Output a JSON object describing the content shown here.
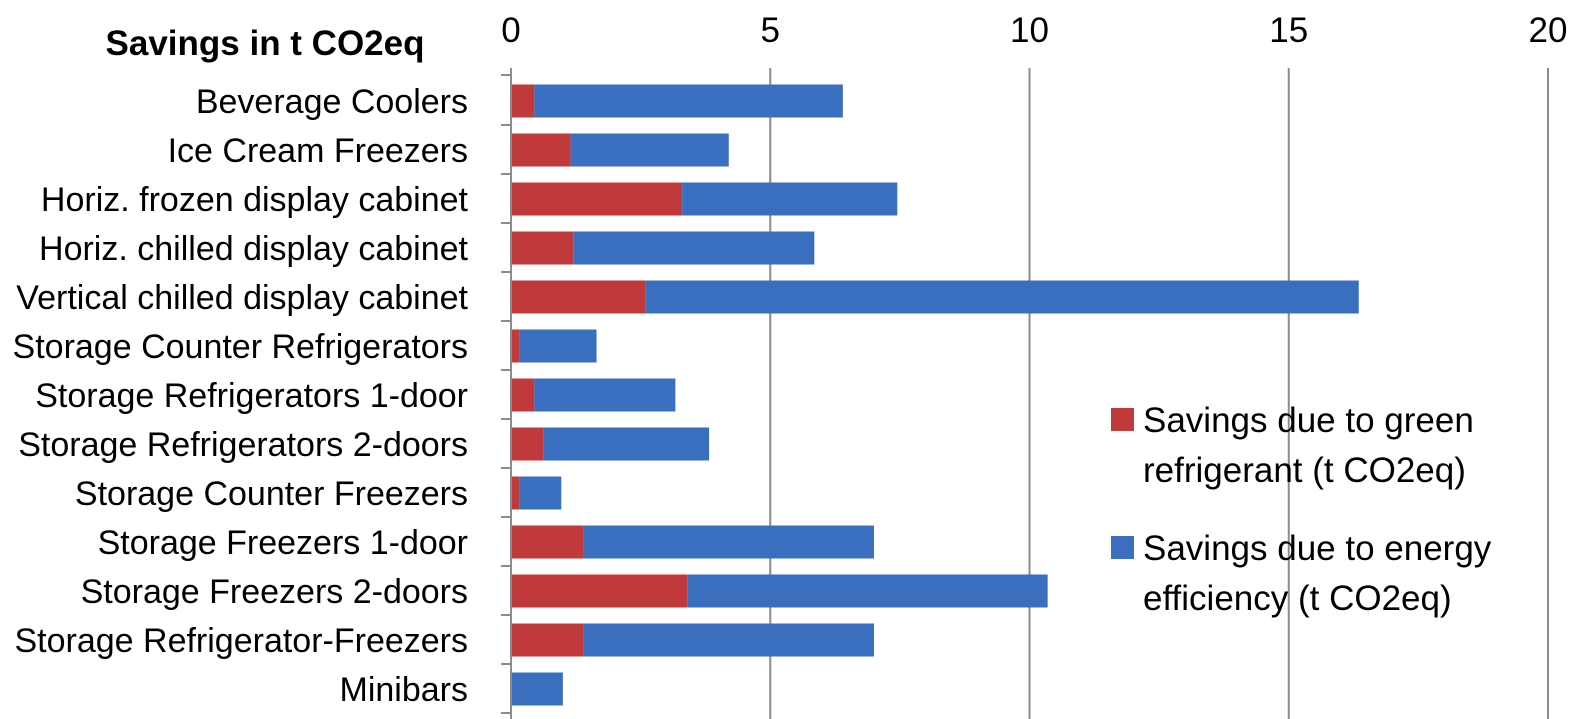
{
  "chart_data": {
    "type": "bar",
    "orientation": "horizontal",
    "stacked": true,
    "title": "Savings in t CO2eq",
    "xlim": [
      0,
      20
    ],
    "xticks": [
      "0",
      "5",
      "10",
      "15",
      "20"
    ],
    "grid": true,
    "legend_position": "right",
    "categories": [
      "Beverage Coolers",
      "Ice Cream  Freezers",
      "Horiz. frozen display cabinet",
      "Horiz. chilled display cabinet",
      "Vertical chilled display cabinet",
      "Storage Counter Refrigerators",
      "Storage Refrigerators 1-door",
      "Storage Refrigerators 2-doors",
      "Storage Counter Freezers",
      "Storage Freezers 1-door",
      "Storage Freezers 2-doors",
      "Storage Refrigerator-Freezers",
      "Minibars"
    ],
    "series": [
      {
        "name": "Savings due to green refrigerant (t CO2eq)",
        "legend_lines": [
          "Savings due to green",
          "refrigerant  (t CO2eq)"
        ],
        "color": "#c0393b",
        "values": [
          0.45,
          1.15,
          3.3,
          1.2,
          2.6,
          0.17,
          0.45,
          0.62,
          0.17,
          1.4,
          3.4,
          1.4,
          0
        ]
      },
      {
        "name": "Savings due to energy efficiency (t CO2eq)",
        "legend_lines": [
          "Savings due to energy",
          "efficiency (t CO2eq)"
        ],
        "color": "#3a6fc0",
        "values": [
          5.95,
          3.05,
          4.15,
          4.65,
          13.75,
          1.48,
          2.72,
          3.2,
          0.8,
          5.6,
          6.95,
          5.6,
          1.0
        ]
      }
    ]
  }
}
